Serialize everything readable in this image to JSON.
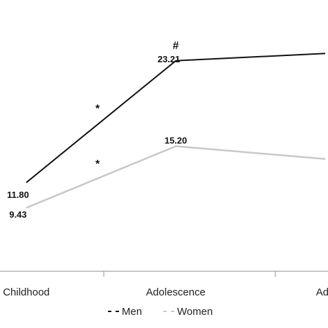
{
  "chart_data": {
    "type": "line",
    "categories": [
      "Childhood",
      "Adolescence",
      "Adulthood"
    ],
    "tick_labels": [
      "Childhood",
      "Adolescence",
      "Adu"
    ],
    "series": [
      {
        "name": "Men",
        "values": [
          11.8,
          23.21,
          23.9
        ],
        "labels": [
          "11.80",
          "23.21",
          null
        ],
        "color": "#111111"
      },
      {
        "name": "Women",
        "values": [
          9.43,
          15.2,
          14.0
        ],
        "labels": [
          "9.43",
          "15.20",
          null
        ],
        "color": "#c8c8c8"
      }
    ],
    "annotations": [
      {
        "series": "Men",
        "between": [
          0,
          1
        ],
        "text": "*"
      },
      {
        "series": "Women",
        "between": [
          0,
          1
        ],
        "text": "*"
      },
      {
        "series": "Men",
        "at": 1,
        "text": "#"
      }
    ],
    "legend": {
      "position": "bottom",
      "items": [
        "Men",
        "Women"
      ]
    },
    "ylim": [
      4,
      28
    ],
    "grid": false
  }
}
